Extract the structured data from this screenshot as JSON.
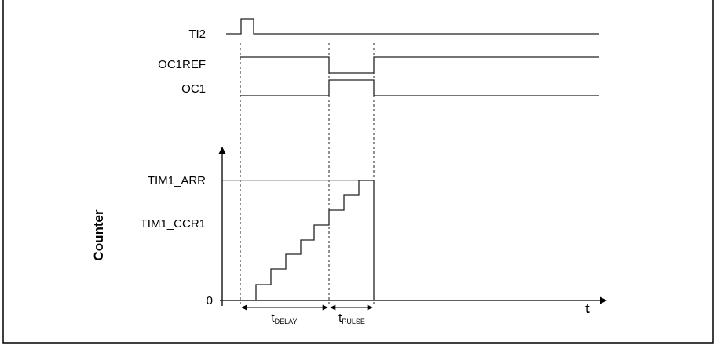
{
  "signals": [
    {
      "label": "TI2"
    },
    {
      "label": "OC1REF"
    },
    {
      "label": "OC1"
    }
  ],
  "counter": {
    "axis_label": "Counter",
    "time_label": "t",
    "arr_label": "TIM1_ARR",
    "ccr1_label": "TIM1_CCR1",
    "zero_label": "0"
  },
  "intervals": [
    {
      "main": "t",
      "sub": "DELAY"
    },
    {
      "main": "t",
      "sub": "PULSE"
    }
  ]
}
